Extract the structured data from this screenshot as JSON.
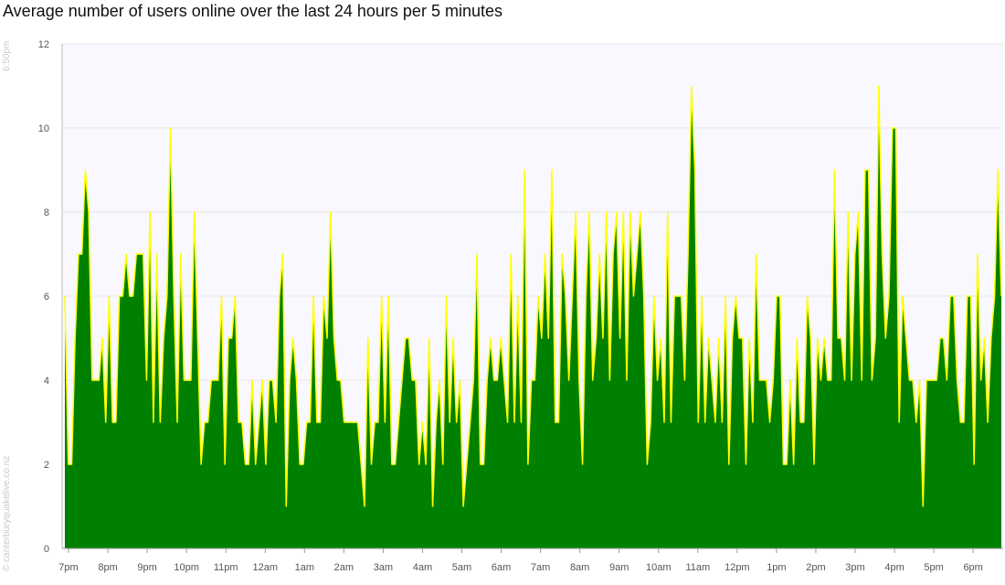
{
  "title": "Average number of users online over the last 24 hours per 5 minutes",
  "timestamp": "6:50pm",
  "credit": "© canterburyquakelive.co.nz",
  "colors": {
    "fill": "#008000",
    "line": "#ffff00",
    "plot_background": "#f9f8fe",
    "grid": "#e6e6e6"
  },
  "chart_data": {
    "type": "area",
    "title": "Average number of users online over the last 24 hours per 5 minutes",
    "xlabel": "",
    "ylabel": "",
    "ylim": [
      0,
      12
    ],
    "yticks": [
      0,
      2,
      4,
      6,
      8,
      10,
      12
    ],
    "x_labels": [
      "7pm",
      "8pm",
      "9pm",
      "10pm",
      "11pm",
      "12am",
      "1am",
      "2am",
      "3am",
      "4am",
      "5am",
      "6am",
      "7am",
      "8am",
      "9am",
      "10am",
      "11am",
      "12pm",
      "1pm",
      "2pm",
      "3pm",
      "4pm",
      "5pm",
      "6pm"
    ],
    "grid": true,
    "legend": "none",
    "series": [
      {
        "values": [
          6,
          2,
          2,
          5,
          7,
          7,
          9,
          8,
          4,
          4,
          4,
          5,
          3,
          6,
          3,
          3,
          6,
          6,
          7,
          6,
          6,
          7,
          7,
          7,
          4,
          8,
          3,
          7,
          3,
          5,
          6,
          10,
          6,
          3,
          7,
          4,
          4,
          4,
          8,
          5,
          2,
          3,
          3,
          4,
          4,
          4,
          6,
          2,
          5,
          5,
          6,
          3,
          3,
          2,
          2,
          4,
          2,
          3,
          4,
          2,
          4,
          4,
          3,
          6,
          7,
          1,
          4,
          5,
          4,
          2,
          2,
          3,
          3,
          6,
          3,
          3,
          6,
          5,
          8,
          5,
          4,
          4,
          3,
          3,
          3,
          3,
          3,
          2,
          1,
          5,
          2,
          3,
          3,
          6,
          3,
          6,
          2,
          2,
          3,
          4,
          5,
          5,
          4,
          4,
          2,
          3,
          2,
          5,
          1,
          3,
          4,
          2,
          6,
          3,
          5,
          3,
          4,
          1,
          2,
          3,
          4,
          7,
          2,
          2,
          4,
          5,
          4,
          4,
          5,
          4,
          3,
          7,
          3,
          6,
          3,
          9,
          2,
          4,
          4,
          6,
          5,
          7,
          5,
          9,
          3,
          3,
          7,
          6,
          4,
          6,
          8,
          4,
          2,
          6,
          8,
          4,
          5,
          7,
          5,
          8,
          4,
          7,
          8,
          5,
          8,
          4,
          8,
          6,
          7,
          8,
          6,
          2,
          3,
          6,
          4,
          5,
          3,
          8,
          3,
          6,
          6,
          6,
          4,
          7,
          11,
          9,
          3,
          6,
          3,
          5,
          4,
          3,
          5,
          3,
          6,
          2,
          5,
          6,
          5,
          5,
          2,
          5,
          3,
          7,
          4,
          4,
          4,
          3,
          4,
          6,
          6,
          2,
          2,
          4,
          2,
          5,
          3,
          3,
          6,
          5,
          2,
          5,
          4,
          5,
          4,
          4,
          9,
          5,
          5,
          4,
          8,
          4,
          7,
          8,
          4,
          9,
          9,
          4,
          5,
          11,
          7,
          5,
          6,
          10,
          10,
          3,
          6,
          5,
          4,
          4,
          3,
          4,
          1,
          4,
          4,
          4,
          4,
          5,
          5,
          4,
          6,
          6,
          4,
          3,
          3,
          6,
          6,
          2,
          7,
          4,
          5,
          3,
          5,
          6,
          9,
          6
        ],
        "color": "#008000"
      }
    ]
  }
}
